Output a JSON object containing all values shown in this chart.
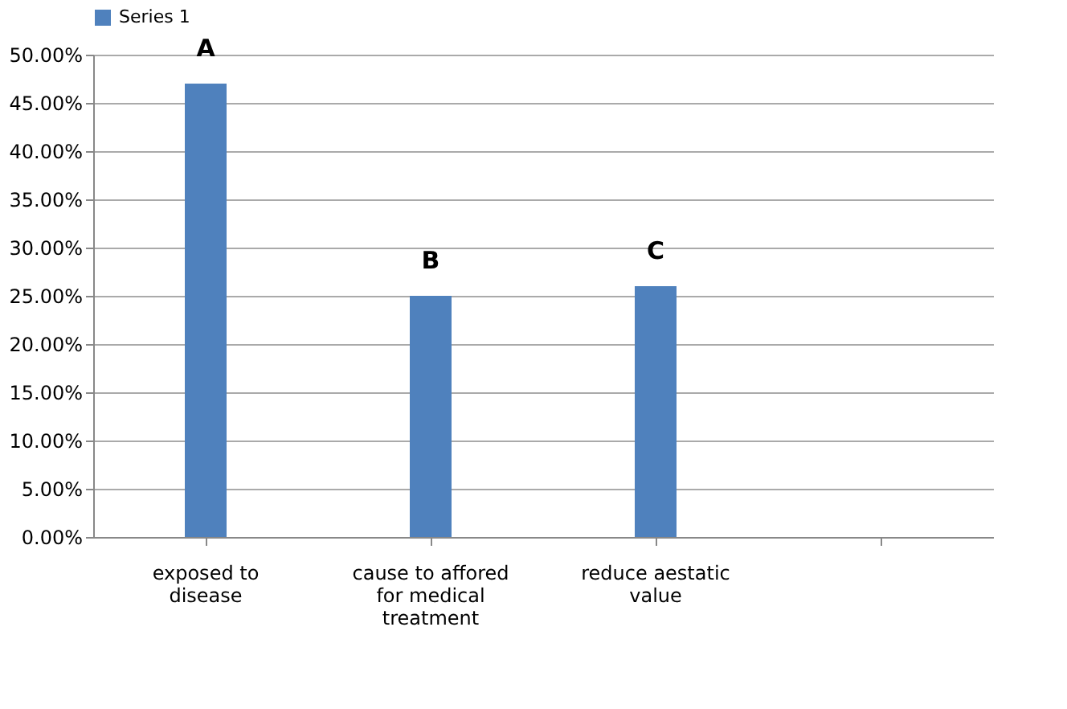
{
  "chart_data": {
    "type": "bar",
    "categories": [
      "exposed to disease",
      "cause to affored for medical treatment",
      "reduce aestatic value",
      null
    ],
    "series": [
      {
        "name": "Series 1",
        "color": "#4f81bd",
        "values": [
          47,
          25,
          26,
          null
        ]
      }
    ],
    "ylim": [
      0,
      50
    ],
    "yticks": [
      {
        "value": 0,
        "label": "0.00%"
      },
      {
        "value": 5,
        "label": "5.00%"
      },
      {
        "value": 10,
        "label": "10.00%"
      },
      {
        "value": 15,
        "label": "15.00%"
      },
      {
        "value": 20,
        "label": "20.00%"
      },
      {
        "value": 25,
        "label": "25.00%"
      },
      {
        "value": 30,
        "label": "30.00%"
      },
      {
        "value": 35,
        "label": "35.00%"
      },
      {
        "value": 40,
        "label": "40.00%"
      },
      {
        "value": 45,
        "label": "45.00%"
      },
      {
        "value": 50,
        "label": "50.00%"
      }
    ],
    "annotations": [
      "A",
      "B",
      "C"
    ],
    "grid": "y",
    "legend": "top"
  }
}
